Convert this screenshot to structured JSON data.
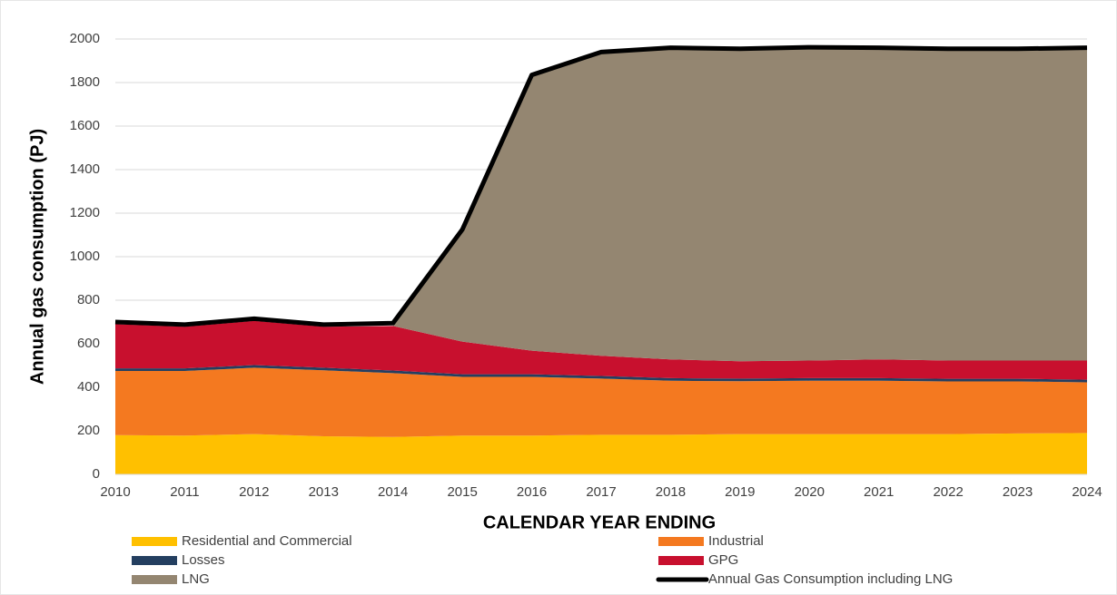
{
  "chart_data": {
    "type": "area",
    "x_label": "CALENDAR YEAR ENDING",
    "y_label": "Annual gas consumption (PJ)",
    "categories": [
      "2010",
      "2011",
      "2012",
      "2013",
      "2014",
      "2015",
      "2016",
      "2017",
      "2018",
      "2019",
      "2020",
      "2021",
      "2022",
      "2023",
      "2024"
    ],
    "series": [
      {
        "name": "Residential and Commercial",
        "color": "#FFC000",
        "values": [
          180,
          178,
          185,
          175,
          172,
          178,
          178,
          182,
          182,
          185,
          185,
          185,
          185,
          188,
          190
        ]
      },
      {
        "name": "Industrial",
        "color": "#F47920",
        "values": [
          295,
          297,
          305,
          303,
          293,
          270,
          270,
          258,
          248,
          243,
          245,
          245,
          242,
          239,
          233
        ]
      },
      {
        "name": "Losses",
        "color": "#243F60",
        "values": [
          12,
          12,
          12,
          12,
          12,
          12,
          12,
          12,
          12,
          12,
          12,
          12,
          12,
          12,
          12
        ]
      },
      {
        "name": "GPG",
        "color": "#C8102E",
        "values": [
          203,
          191,
          203,
          188,
          205,
          150,
          108,
          93,
          86,
          80,
          81,
          86,
          84,
          84,
          88
        ]
      },
      {
        "name": "LNG",
        "color": "#948671",
        "values": [
          0,
          0,
          0,
          0,
          0,
          515,
          1267,
          1395,
          1432,
          1435,
          1439,
          1432,
          1432,
          1432,
          1437
        ]
      },
      {
        "name": "Annual Gas Consumption including LNG",
        "color": "#000000",
        "type": "line",
        "values": [
          700,
          688,
          715,
          688,
          695,
          1125,
          1835,
          1940,
          1960,
          1955,
          1962,
          1960,
          1955,
          1955,
          1960
        ]
      }
    ],
    "ylim": [
      0,
      2000
    ],
    "yticks": [
      0,
      200,
      400,
      600,
      800,
      1000,
      1200,
      1400,
      1600,
      1800,
      2000
    ],
    "grid": true
  }
}
